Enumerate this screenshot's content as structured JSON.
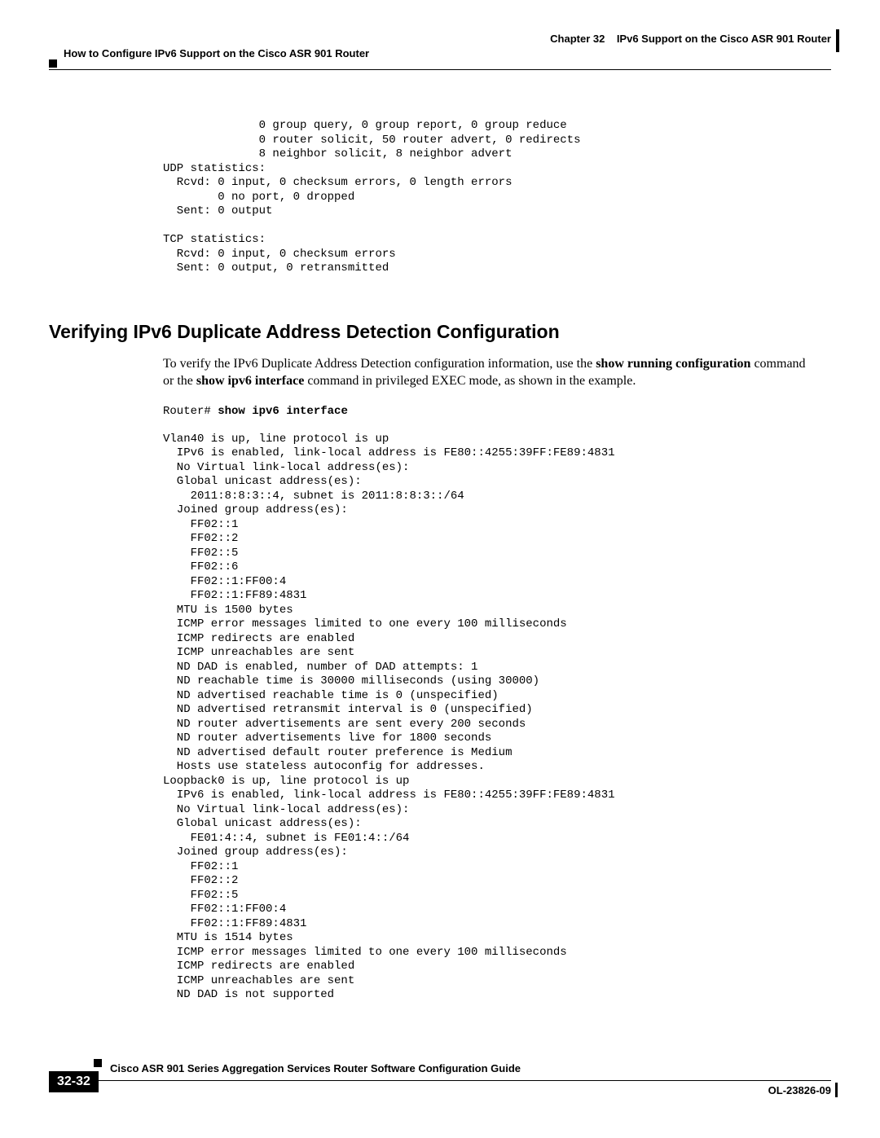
{
  "header": {
    "chapter_label": "Chapter 32",
    "chapter_title": "IPv6 Support on the Cisco ASR 901 Router",
    "section_title": "How to Configure IPv6 Support on the Cisco ASR 901 Router"
  },
  "code_block_top": "              0 group query, 0 group report, 0 group reduce\n              0 router solicit, 50 router advert, 0 redirects\n              8 neighbor solicit, 8 neighbor advert\nUDP statistics:\n  Rcvd: 0 input, 0 checksum errors, 0 length errors\n        0 no port, 0 dropped\n  Sent: 0 output\n\nTCP statistics:\n  Rcvd: 0 input, 0 checksum errors\n  Sent: 0 output, 0 retransmitted",
  "heading2": "Verifying IPv6 Duplicate Address Detection Configuration",
  "body_para": {
    "part1": "To verify the IPv6 Duplicate Address Detection configuration information, use the ",
    "bold1": "show running configuration",
    "part2": " command or the ",
    "bold2": "show ipv6 interface",
    "part3": " command in privileged EXEC mode, as shown in the example."
  },
  "router_prompt": "Router# ",
  "router_cmd": "show ipv6 interface",
  "code_block_interface": "Vlan40 is up, line protocol is up\n  IPv6 is enabled, link-local address is FE80::4255:39FF:FE89:4831\n  No Virtual link-local address(es):\n  Global unicast address(es):\n    2011:8:8:3::4, subnet is 2011:8:8:3::/64\n  Joined group address(es):\n    FF02::1\n    FF02::2\n    FF02::5\n    FF02::6\n    FF02::1:FF00:4\n    FF02::1:FF89:4831\n  MTU is 1500 bytes\n  ICMP error messages limited to one every 100 milliseconds\n  ICMP redirects are enabled\n  ICMP unreachables are sent\n  ND DAD is enabled, number of DAD attempts: 1\n  ND reachable time is 30000 milliseconds (using 30000)\n  ND advertised reachable time is 0 (unspecified)\n  ND advertised retransmit interval is 0 (unspecified)\n  ND router advertisements are sent every 200 seconds\n  ND router advertisements live for 1800 seconds\n  ND advertised default router preference is Medium\n  Hosts use stateless autoconfig for addresses.\nLoopback0 is up, line protocol is up\n  IPv6 is enabled, link-local address is FE80::4255:39FF:FE89:4831\n  No Virtual link-local address(es):\n  Global unicast address(es):\n    FE01:4::4, subnet is FE01:4::/64\n  Joined group address(es):\n    FF02::1\n    FF02::2\n    FF02::5\n    FF02::1:FF00:4\n    FF02::1:FF89:4831\n  MTU is 1514 bytes\n  ICMP error messages limited to one every 100 milliseconds\n  ICMP redirects are enabled\n  ICMP unreachables are sent\n  ND DAD is not supported",
  "footer": {
    "doc_title": "Cisco ASR 901 Series Aggregation Services Router Software Configuration Guide",
    "page_num": "32-32",
    "doc_id": "OL-23826-09"
  }
}
